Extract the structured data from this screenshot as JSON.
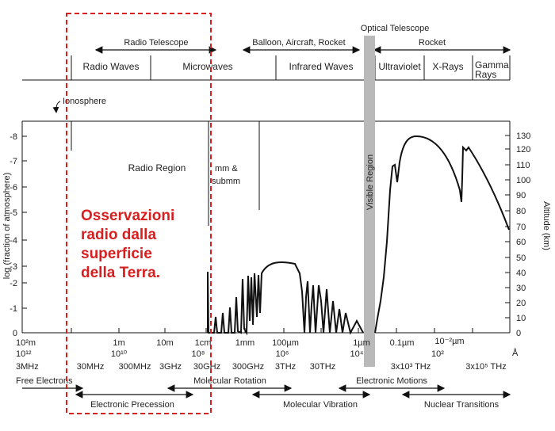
{
  "top_labels": {
    "optical_telescope": "Optical Telescope",
    "radio_telescope": "Radio Telescope",
    "balloon": "Balloon, Aircraft, Rocket",
    "rocket": "Rocket"
  },
  "bands": [
    "Radio Waves",
    "Microwaves",
    "Infrared Waves",
    "Ultraviolet",
    "X-Rays",
    "Gamma",
    "Rays"
  ],
  "ionosphere": "Ionosphere",
  "regions": {
    "radio_region": "Radio Region",
    "mm_1": "mm &",
    "mm_2": "submm",
    "visible": "Visible Region"
  },
  "overlay_lines": [
    "Osservazioni",
    "radio dalla",
    "superficie",
    "della Terra."
  ],
  "y_left": {
    "label": "log (fraction of atmosphere)",
    "ticks": [
      "-8",
      "-7",
      "-6",
      "-5",
      "-4",
      "-3",
      "-2",
      "-1",
      "0"
    ]
  },
  "y_right": {
    "label": "Altitude (km)",
    "ticks": [
      "130",
      "120",
      "110",
      "100",
      "90",
      "80",
      "70",
      "60",
      "50",
      "40",
      "30",
      "20",
      "10",
      "0"
    ]
  },
  "x_wavelength": [
    "10²m",
    "1m",
    "10m",
    "1cm",
    "1mm",
    "100µm",
    "1µm",
    "0.1µm",
    "10⁻²µm",
    "Å"
  ],
  "x_power": [
    "10¹²",
    "10¹⁰",
    "10⁸",
    "10⁶",
    "10⁴",
    "10²"
  ],
  "x_frequency": [
    "3MHz",
    "30MHz",
    "300MHz",
    "3GHz",
    "30GHz",
    "300GHz",
    "3THz",
    "30THz",
    "3x10³ THz",
    "3x10⁵ THz"
  ],
  "processes": {
    "free_electrons": "Free Electrons",
    "molecular_rotation": "Molecular Rotation",
    "electronic_motions": "Electronic Motions",
    "electronic_precession": "Electronic Precession",
    "molecular_vibration": "Molecular Vibration",
    "nuclear_transitions": "Nuclear Transitions"
  },
  "colors": {
    "overlay": "#d81e1e",
    "visible_band": "#b9b9b9",
    "line": "#111111"
  }
}
